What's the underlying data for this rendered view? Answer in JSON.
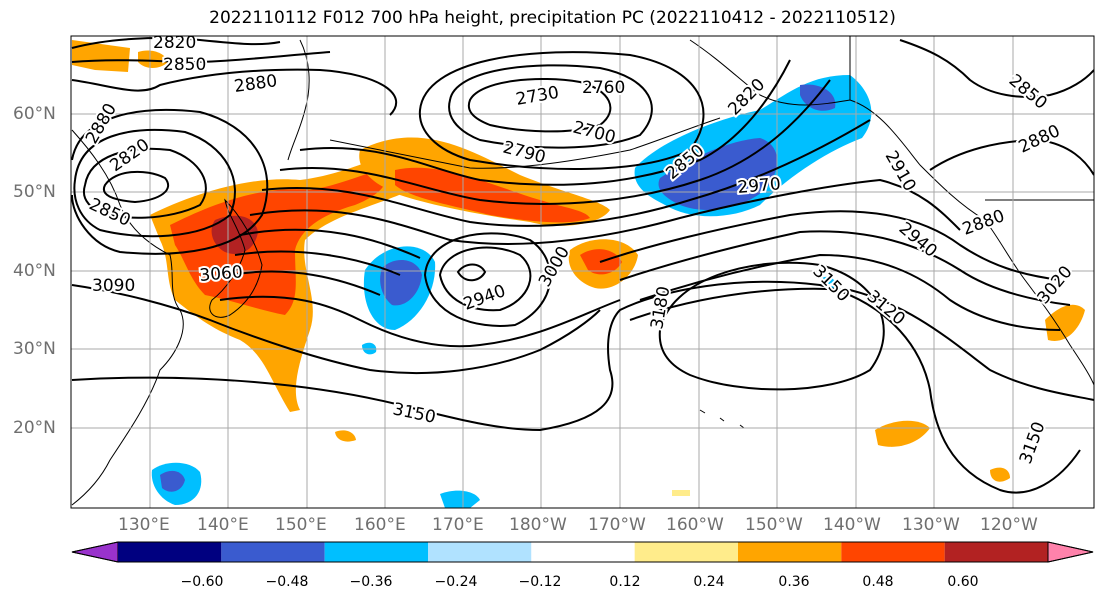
{
  "title": "2022110112 F012 700 hPa height, precipitation PC (2022110412 - 2022110512)",
  "lon_labels": [
    "130°E",
    "140°E",
    "150°E",
    "160°E",
    "170°E",
    "180°W",
    "170°W",
    "160°W",
    "150°W",
    "140°W",
    "130°W",
    "120°W"
  ],
  "lat_labels": [
    "60°N",
    "50°N",
    "40°N",
    "30°N",
    "20°N"
  ],
  "contour_labels": [
    "2820",
    "2850",
    "2880",
    "2880",
    "2820",
    "2850",
    "2730",
    "2760",
    "2700",
    "2790",
    "2820",
    "2850",
    "2970",
    "2910",
    "2880",
    "2940",
    "2880",
    "2850",
    "3060",
    "3090",
    "3000",
    "2940",
    "3180",
    "3150",
    "3120",
    "3150",
    "3150",
    "3020"
  ],
  "colorbar": {
    "colors": [
      "#9932cc",
      "#000080",
      "#3a5bcf",
      "#00bfff",
      "#b0e2ff",
      "#ffffff",
      "#ffec8b",
      "#ffa500",
      "#ff4500",
      "#b22222",
      "#ff82ab"
    ],
    "tick_labels": [
      "−0.60",
      "−0.48",
      "−0.36",
      "−0.24",
      "−0.12",
      "0.12",
      "0.24",
      "0.36",
      "0.48",
      "0.60"
    ]
  }
}
